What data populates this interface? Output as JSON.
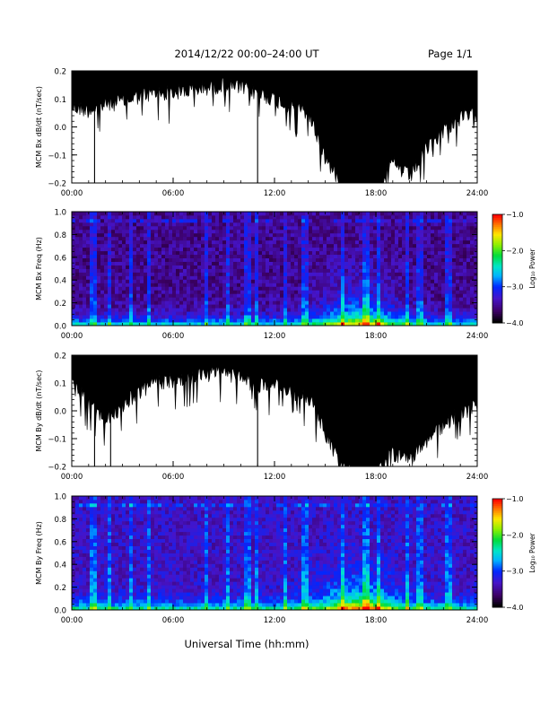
{
  "header": {
    "title": "2014/12/22   00:00–24:00 UT",
    "page_label": "Page 1/1"
  },
  "footer": {
    "xlabel": "Universal Time (hh:mm)"
  },
  "chart_data": [
    {
      "type": "area",
      "ylabel": "MCM Bx dB/dt (nT/sec)",
      "xlim": [
        0,
        24
      ],
      "ylim": [
        -0.2,
        0.2
      ],
      "xticks": [
        "00:00",
        "06:00",
        "12:00",
        "18:00",
        "24:00"
      ],
      "yticks": [
        "0.2",
        "0.1",
        "0.0",
        "−0.1",
        "−0.2"
      ],
      "ytick_values": [
        0.2,
        0.1,
        0.0,
        -0.1,
        -0.2
      ],
      "series": [
        {
          "hours": [
            0,
            1,
            2,
            3,
            4,
            5,
            6,
            7,
            8,
            9,
            10,
            11,
            12,
            13,
            14,
            15,
            16,
            17,
            18,
            19,
            20,
            21,
            22,
            23,
            24
          ],
          "envelope_min": [
            0.1,
            0.09,
            0.11,
            0.12,
            0.14,
            0.15,
            0.15,
            0.16,
            0.17,
            0.18,
            0.17,
            0.15,
            0.13,
            0.1,
            0.08,
            -0.08,
            -0.18,
            -0.2,
            -0.2,
            -0.1,
            -0.15,
            -0.05,
            0.02,
            0.06,
            0.08
          ]
        }
      ],
      "spikes": [
        {
          "hour": 1.35,
          "value": -0.2
        },
        {
          "hour": 11.0,
          "value": -0.2
        }
      ]
    },
    {
      "type": "heatmap",
      "ylabel": "MCM Bx Freq (Hz)",
      "xlim": [
        0,
        24
      ],
      "ylim": [
        0,
        1.0
      ],
      "xticks": [
        "00:00",
        "06:00",
        "12:00",
        "18:00",
        "24:00"
      ],
      "yticks": [
        "1.0",
        "0.8",
        "0.6",
        "0.4",
        "0.2",
        "0.0"
      ],
      "ytick_values": [
        1.0,
        0.8,
        0.6,
        0.4,
        0.2,
        0.0
      ],
      "colorbar": {
        "label": "Log₁₀ Power",
        "ticks": [
          "−1.0",
          "−2.0",
          "−3.0",
          "−4.0"
        ],
        "tick_values": [
          -1.0,
          -2.0,
          -3.0,
          -4.0
        ],
        "range": [
          -4.0,
          -1.0
        ]
      }
    },
    {
      "type": "area",
      "ylabel": "MCM By dB/dt (nT/sec)",
      "xlim": [
        0,
        24
      ],
      "ylim": [
        -0.2,
        0.2
      ],
      "xticks": [
        "00:00",
        "06:00",
        "12:00",
        "18:00",
        "24:00"
      ],
      "yticks": [
        "0.2",
        "0.1",
        "0.0",
        "−0.1",
        "−0.2"
      ],
      "ytick_values": [
        0.2,
        0.1,
        0.0,
        -0.1,
        -0.2
      ],
      "series": [
        {
          "hours": [
            0,
            1,
            2,
            3,
            4,
            5,
            6,
            7,
            8,
            9,
            10,
            11,
            12,
            13,
            14,
            15,
            16,
            17,
            18,
            19,
            20,
            21,
            22,
            23,
            24
          ],
          "envelope_min": [
            0.12,
            0.06,
            0.0,
            0.05,
            0.1,
            0.13,
            0.14,
            0.15,
            0.16,
            0.17,
            0.15,
            0.12,
            0.12,
            0.1,
            0.08,
            -0.05,
            -0.18,
            -0.2,
            -0.2,
            -0.12,
            -0.15,
            -0.08,
            -0.02,
            0.02,
            0.05
          ]
        }
      ],
      "spikes": [
        {
          "hour": 1.35,
          "value": -0.2
        },
        {
          "hour": 2.3,
          "value": -0.2
        },
        {
          "hour": 11.0,
          "value": -0.2
        }
      ]
    },
    {
      "type": "heatmap",
      "ylabel": "MCM By Freq (Hz)",
      "xlim": [
        0,
        24
      ],
      "ylim": [
        0,
        1.0
      ],
      "xticks": [
        "00:00",
        "06:00",
        "12:00",
        "18:00",
        "24:00"
      ],
      "yticks": [
        "1.0",
        "0.8",
        "0.6",
        "0.4",
        "0.2",
        "0.0"
      ],
      "ytick_values": [
        1.0,
        0.8,
        0.6,
        0.4,
        0.2,
        0.0
      ],
      "colorbar": {
        "label": "Log₁₀ Power",
        "ticks": [
          "−1.0",
          "−2.0",
          "−3.0",
          "−4.0"
        ],
        "tick_values": [
          -1.0,
          -2.0,
          -3.0,
          -4.0
        ],
        "range": [
          -4.0,
          -1.0
        ]
      }
    }
  ]
}
